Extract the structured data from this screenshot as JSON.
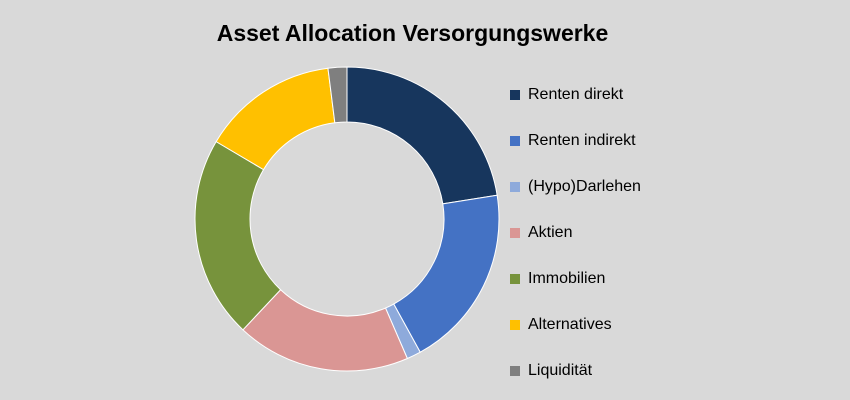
{
  "chart_data": {
    "type": "pie",
    "variant": "donut",
    "title": "Asset Allocation Versorgungswerke",
    "legend_position": "right",
    "slices": [
      {
        "label": "Renten direkt",
        "value": 22.5,
        "color": "#17365d"
      },
      {
        "label": "Renten indirekt",
        "value": 19.5,
        "color": "#4472c4"
      },
      {
        "label": "(Hypo)Darlehen",
        "value": 1.5,
        "color": "#8eaadb"
      },
      {
        "label": "Aktien",
        "value": 18.5,
        "color": "#da9694"
      },
      {
        "label": "Immobilien",
        "value": 21.5,
        "color": "#77933c"
      },
      {
        "label": "Alternatives",
        "value": 14.5,
        "color": "#ffc000"
      },
      {
        "label": "Liquidität",
        "value": 2.0,
        "color": "#7f7f7f"
      }
    ]
  }
}
